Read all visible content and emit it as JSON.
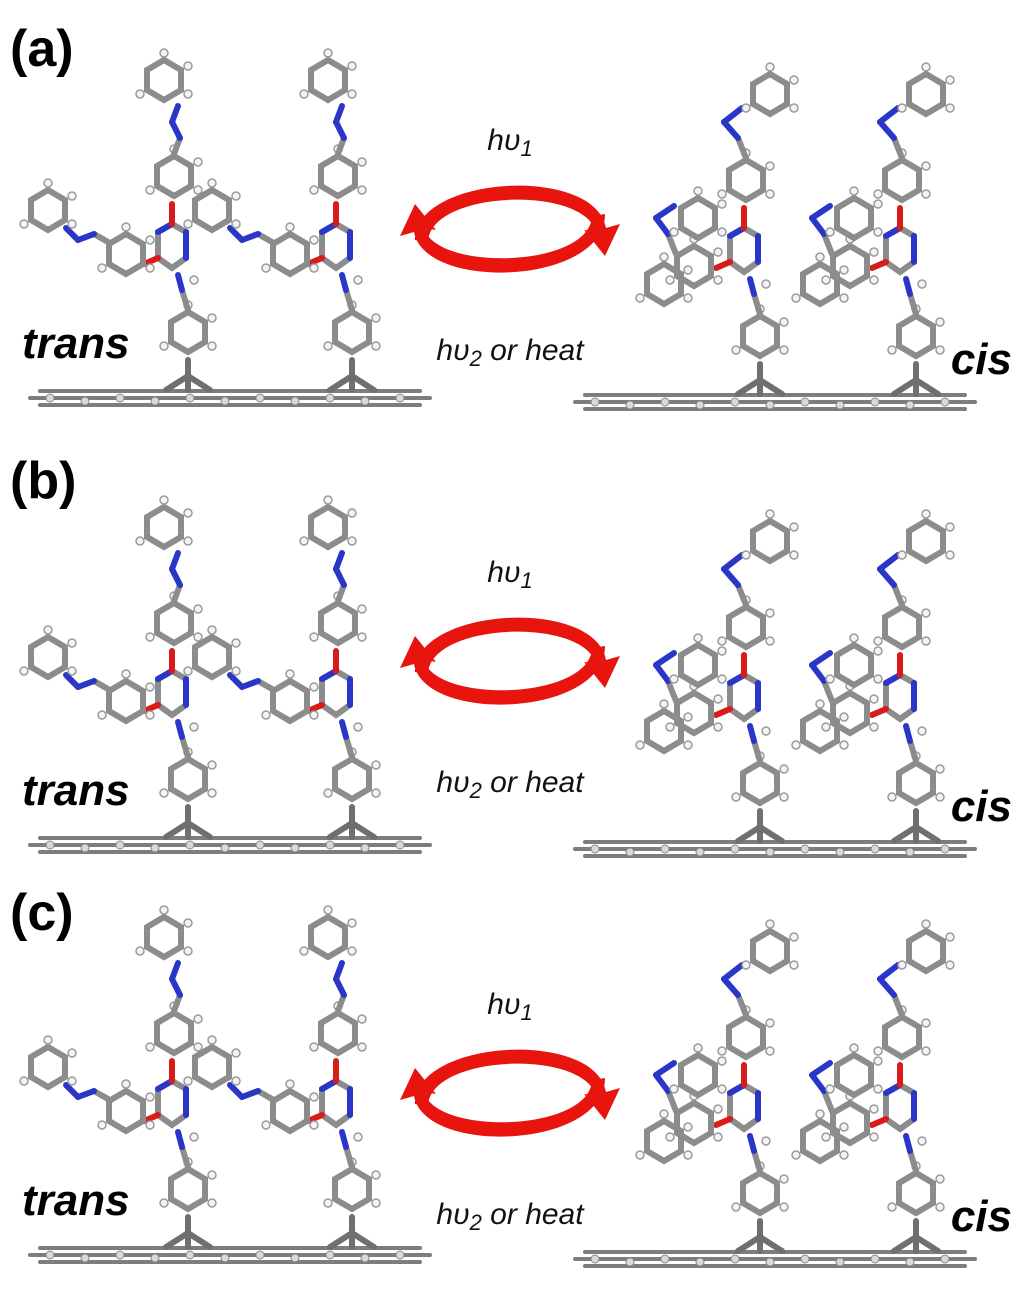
{
  "panels": [
    {
      "label": "(a)",
      "left_state": "trans",
      "right_state": "cis",
      "forward": "hυ",
      "forward_sub": "1",
      "reverse": "hυ",
      "reverse_sub": "2",
      "reverse_tail": " or heat"
    },
    {
      "label": "(b)",
      "left_state": "trans",
      "right_state": "cis",
      "forward": "hυ",
      "forward_sub": "1",
      "reverse": "hυ",
      "reverse_sub": "2",
      "reverse_tail": " or heat"
    },
    {
      "label": "(c)",
      "left_state": "trans",
      "right_state": "cis",
      "forward": "hυ",
      "forward_sub": "1",
      "reverse": "hυ",
      "reverse_sub": "2",
      "reverse_tail": " or heat"
    }
  ],
  "colors": {
    "arrow": "#e8140e",
    "carbon": "#8c8c8c",
    "nitrogen": "#2a36c8",
    "oxygen": "#d81c1c",
    "hydrogen": "#f4f4f4"
  }
}
